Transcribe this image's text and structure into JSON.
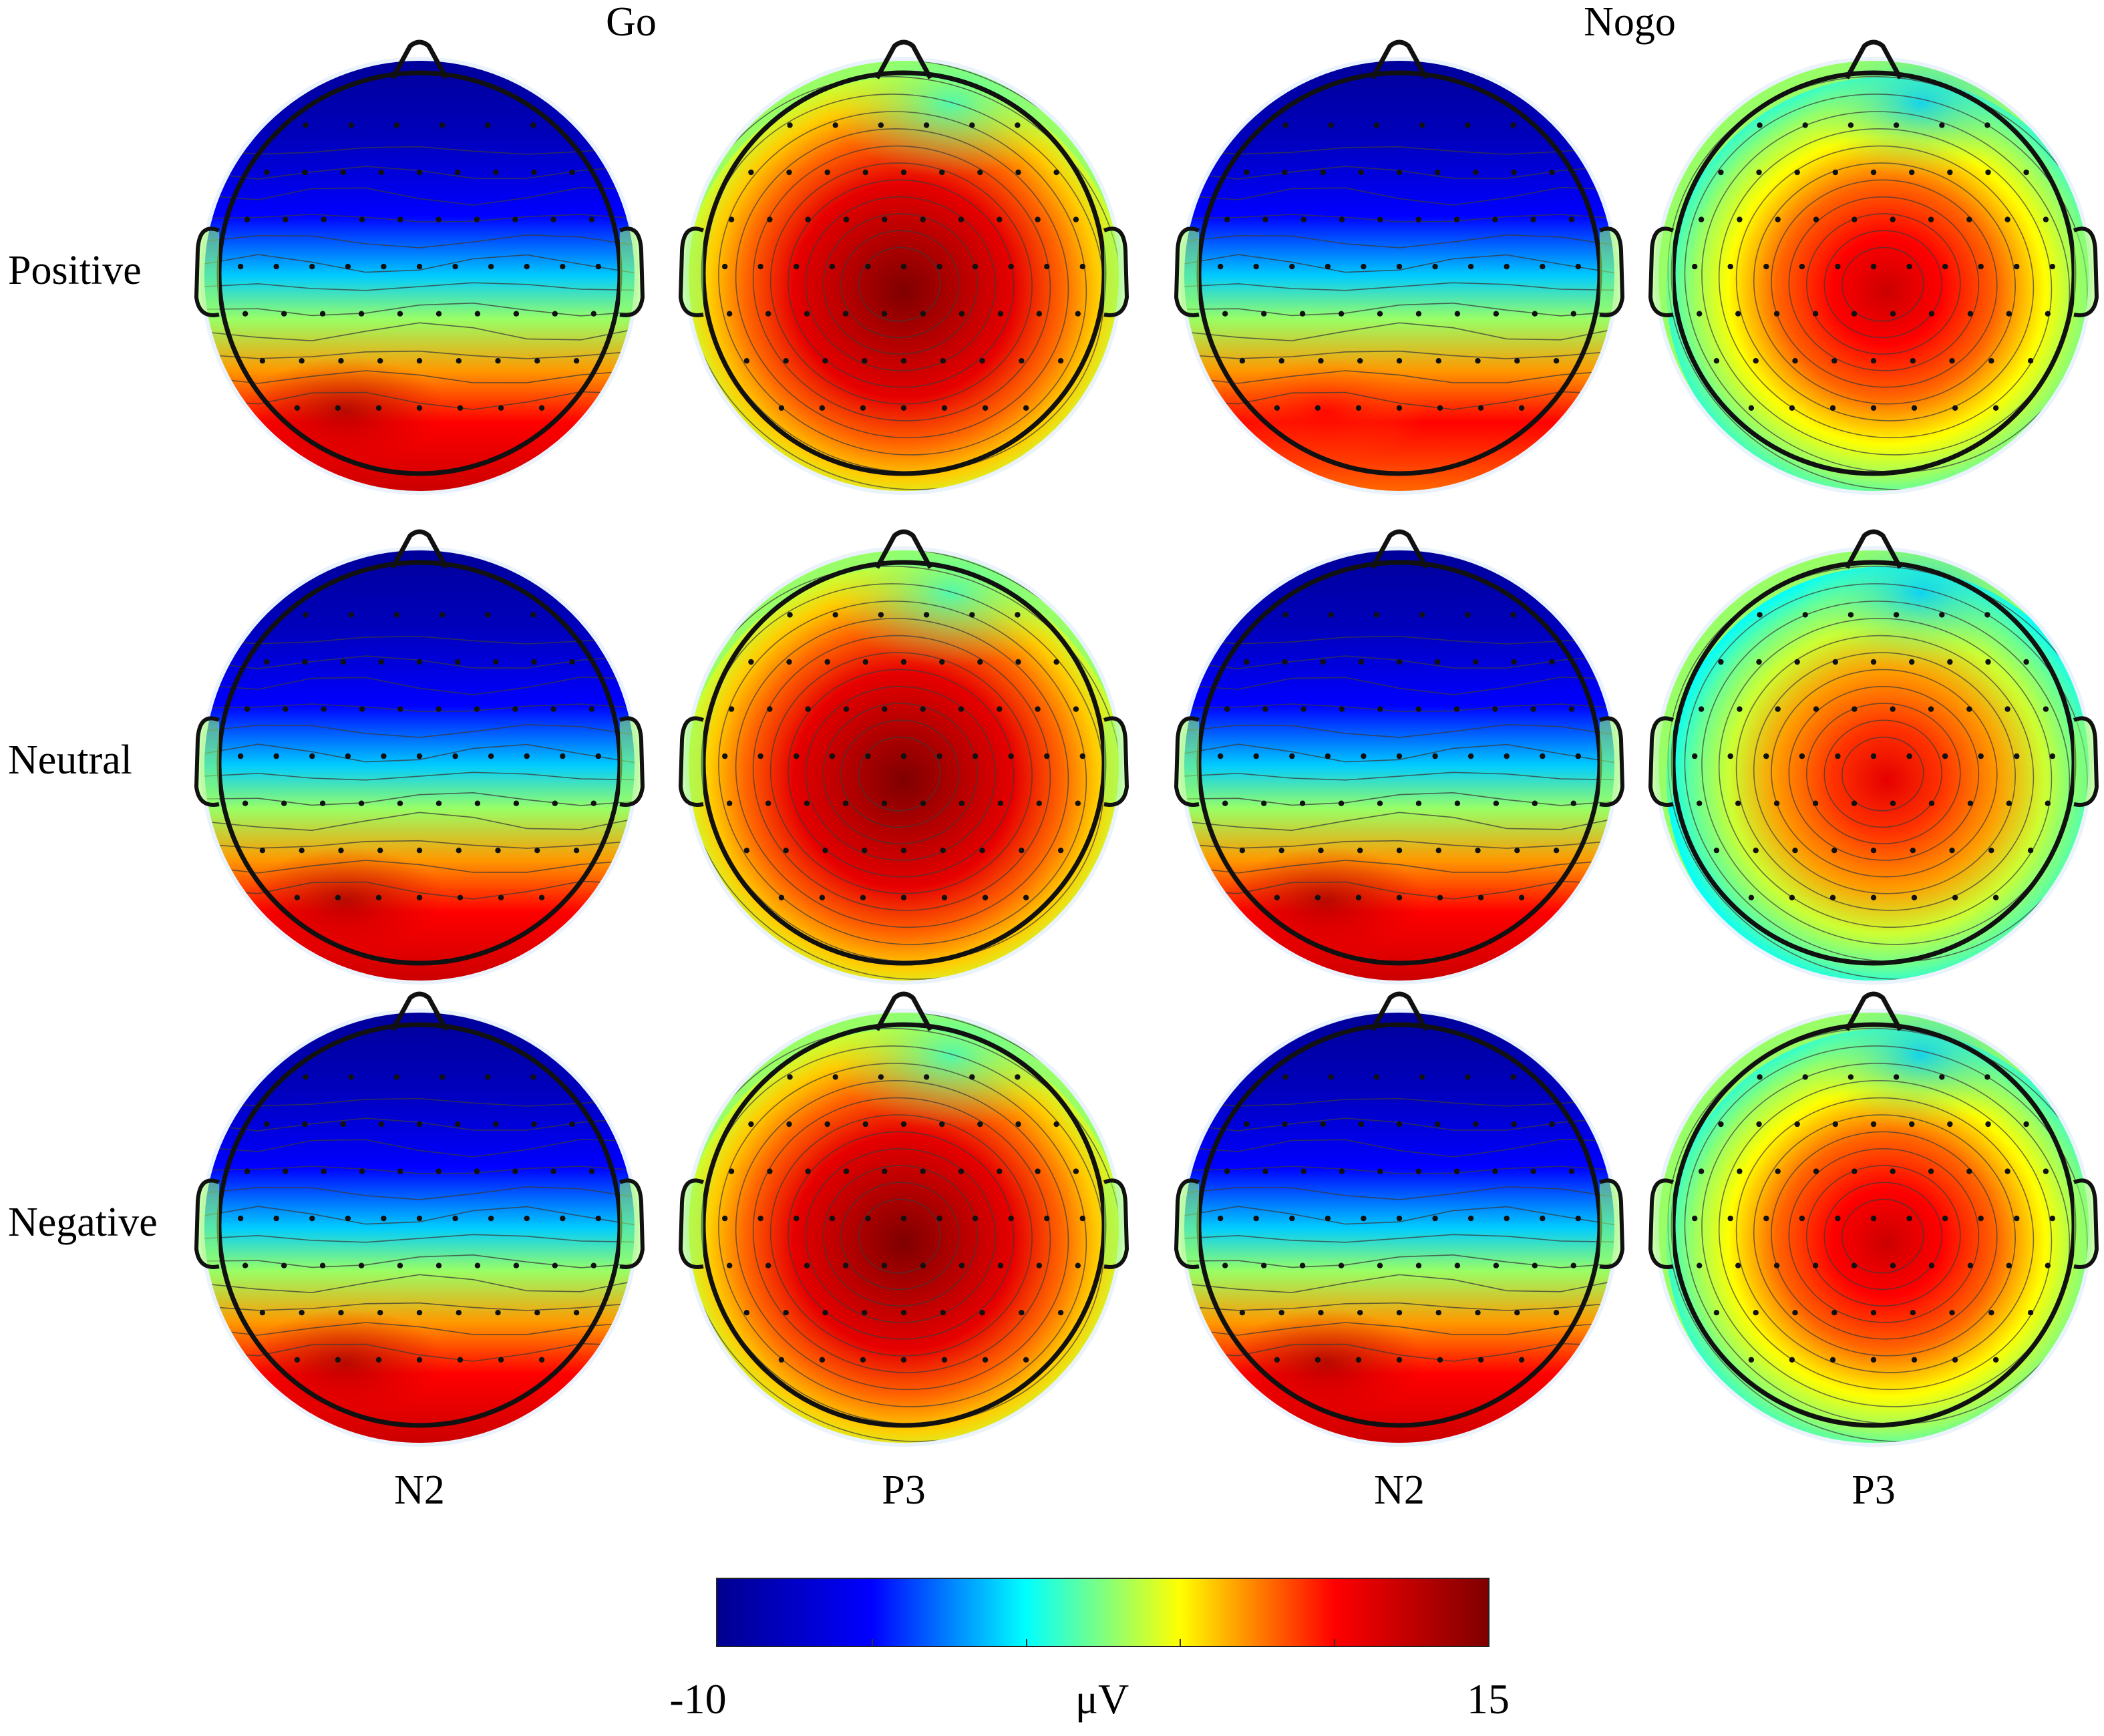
{
  "conditions": {
    "go": "Go",
    "nogo": "Nogo"
  },
  "rows": [
    "Positive",
    "Neutral",
    "Negative"
  ],
  "columns": [
    "N2",
    "P3",
    "N2",
    "P3"
  ],
  "colorbar": {
    "min_label": "-10",
    "unit_label": "μV",
    "max_label": "15",
    "range": [
      -10,
      15
    ],
    "colormap": [
      "#00008f",
      "#0000ff",
      "#00ffff",
      "#ffff00",
      "#ff0000",
      "#800000"
    ]
  },
  "maps": [
    [
      {
        "condition": "Go",
        "component": "N2",
        "pattern": "frontal-negative-posterior-positive",
        "peak_uV": 12
      },
      {
        "condition": "Go",
        "component": "P3",
        "pattern": "centro-parietal-peak",
        "peak_uV": 15
      },
      {
        "condition": "Nogo",
        "component": "N2",
        "pattern": "frontal-negative-posterior-positive",
        "peak_uV": 8
      },
      {
        "condition": "Nogo",
        "component": "P3",
        "pattern": "centro-parietal-peak",
        "peak_uV": 12
      }
    ],
    [
      {
        "condition": "Go",
        "component": "N2",
        "pattern": "frontal-negative-posterior-positive",
        "peak_uV": 12
      },
      {
        "condition": "Go",
        "component": "P3",
        "pattern": "centro-parietal-peak",
        "peak_uV": 15
      },
      {
        "condition": "Nogo",
        "component": "N2",
        "pattern": "frontal-negative-posterior-positive",
        "peak_uV": 12
      },
      {
        "condition": "Nogo",
        "component": "P3",
        "pattern": "centro-parietal-peak",
        "peak_uV": 11
      }
    ],
    [
      {
        "condition": "Go",
        "component": "N2",
        "pattern": "frontal-negative-posterior-positive",
        "peak_uV": 12
      },
      {
        "condition": "Go",
        "component": "P3",
        "pattern": "centro-parietal-peak",
        "peak_uV": 15
      },
      {
        "condition": "Nogo",
        "component": "N2",
        "pattern": "frontal-negative-posterior-positive",
        "peak_uV": 12
      },
      {
        "condition": "Nogo",
        "component": "P3",
        "pattern": "centro-parietal-peak",
        "peak_uV": 12
      }
    ]
  ]
}
